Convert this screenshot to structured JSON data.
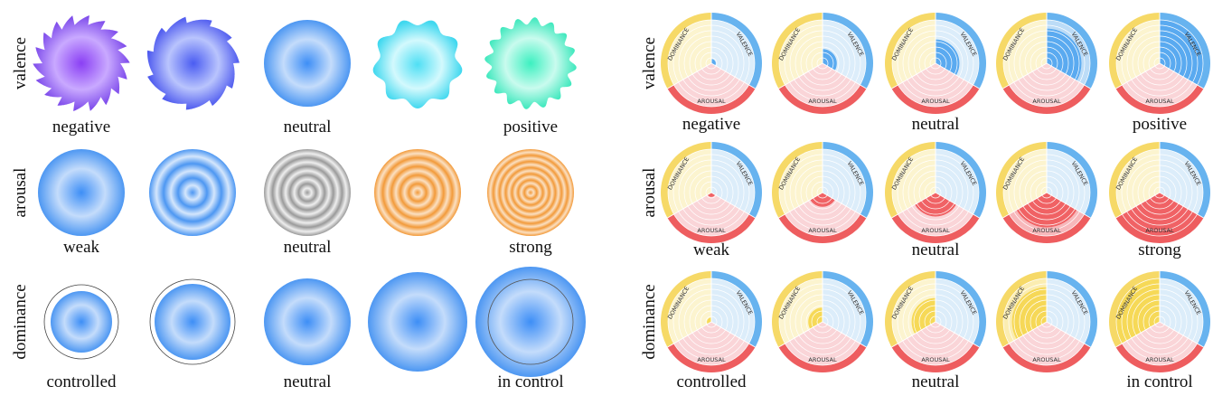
{
  "left": {
    "rows": [
      {
        "label": "valence",
        "captions": [
          "negative",
          "neutral",
          "positive"
        ]
      },
      {
        "label": "arousal",
        "captions": [
          "weak",
          "neutral",
          "strong"
        ]
      },
      {
        "label": "dominance",
        "captions": [
          "controlled",
          "neutral",
          "in control"
        ]
      }
    ]
  },
  "right": {
    "rows": [
      {
        "label": "valence",
        "captions": [
          "negative",
          "neutral",
          "positive"
        ]
      },
      {
        "label": "arousal",
        "captions": [
          "weak",
          "neutral",
          "strong"
        ]
      },
      {
        "label": "dominance",
        "captions": [
          "controlled",
          "neutral",
          "in control"
        ]
      }
    ]
  },
  "glyph_labels": {
    "dominance": "DOMINANCE",
    "valence": "VALENCE",
    "arousal": "AROUSAL"
  }
}
